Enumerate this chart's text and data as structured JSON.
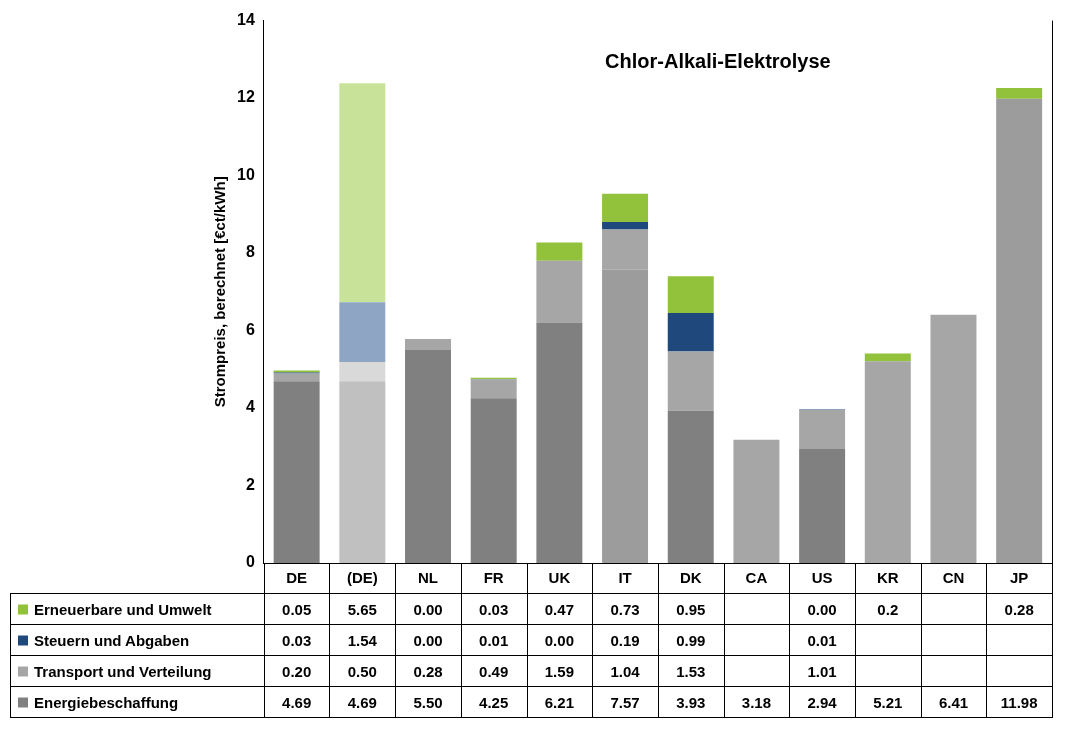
{
  "chart_data": {
    "type": "bar",
    "title": "Chlor-Alkali-Elektrolyse",
    "ylabel": "Strompreis, berechnet [€ct/kWh]",
    "categories": [
      "DE",
      "(DE)",
      "NL",
      "FR",
      "UK",
      "IT",
      "DK",
      "CA",
      "US",
      "KR",
      "CN",
      "JP"
    ],
    "stacked": true,
    "ylim": [
      0,
      14
    ],
    "yticks": [
      0,
      2,
      4,
      6,
      8,
      10,
      12,
      14
    ],
    "grid": false,
    "legend": "bottom",
    "series": [
      {
        "name": "Energiebeschaffung",
        "color": "#808080",
        "colors": [
          "#808080",
          "#c0c0c0",
          "#808080",
          "#808080",
          "#808080",
          "#9c9c9c",
          "#808080",
          "#a6a6a6",
          "#808080",
          "#a6a6a6",
          "#a6a6a6",
          "#9c9c9c"
        ],
        "values": [
          4.69,
          4.69,
          5.5,
          4.25,
          6.21,
          7.57,
          3.93,
          3.18,
          2.94,
          5.21,
          6.41,
          11.98
        ],
        "value_labels": [
          "4.69",
          "4.69",
          "5.50",
          "4.25",
          "6.21",
          "7.57",
          "3.93",
          "3.18",
          "2.94",
          "5.21",
          "6.41",
          "11.98"
        ]
      },
      {
        "name": "Transport und Verteilung",
        "color": "#a6a6a6",
        "colors": [
          "#a6a6a6",
          "#d9d9d9",
          "#a6a6a6",
          "#a6a6a6",
          "#a6a6a6",
          "#a6a6a6",
          "#a6a6a6",
          "#a6a6a6",
          "#a6a6a6",
          "#a6a6a6",
          "#a6a6a6",
          "#a6a6a6"
        ],
        "values": [
          0.2,
          0.5,
          0.28,
          0.49,
          1.59,
          1.04,
          1.53,
          null,
          1.01,
          null,
          null,
          null
        ],
        "value_labels": [
          "0.20",
          "0.50",
          "0.28",
          "0.49",
          "1.59",
          "1.04",
          "1.53",
          null,
          "1.01",
          null,
          null,
          null
        ]
      },
      {
        "name": "Steuern und Abgaben",
        "color": "#1f497d",
        "colors": [
          "#1f497d",
          "#8ea5c4",
          "#1f497d",
          "#1f497d",
          "#1f497d",
          "#1f497d",
          "#1f497d",
          "#1f497d",
          "#1f497d",
          "#1f497d",
          "#1f497d",
          "#1f497d"
        ],
        "values": [
          0.03,
          1.54,
          0.0,
          0.01,
          0.0,
          0.19,
          0.99,
          null,
          0.01,
          null,
          null,
          null
        ],
        "value_labels": [
          "0.03",
          "1.54",
          "0.00",
          "0.01",
          "0.00",
          "0.19",
          "0.99",
          null,
          "0.01",
          null,
          null,
          null
        ]
      },
      {
        "name": "Erneuerbare und Umwelt",
        "color": "#92c13c",
        "colors": [
          "#92c13c",
          "#c9e29a",
          "#92c13c",
          "#92c13c",
          "#92c13c",
          "#92c13c",
          "#92c13c",
          "#92c13c",
          "#92c13c",
          "#92c13c",
          "#92c13c",
          "#92c13c"
        ],
        "values": [
          0.05,
          5.65,
          0.0,
          0.03,
          0.47,
          0.73,
          0.95,
          null,
          0.0,
          0.2,
          null,
          0.28
        ],
        "value_labels": [
          "0.05",
          "5.65",
          "0.00",
          "0.03",
          "0.47",
          "0.73",
          "0.95",
          null,
          "0.00",
          "0.2",
          null,
          "0.28"
        ]
      }
    ]
  }
}
